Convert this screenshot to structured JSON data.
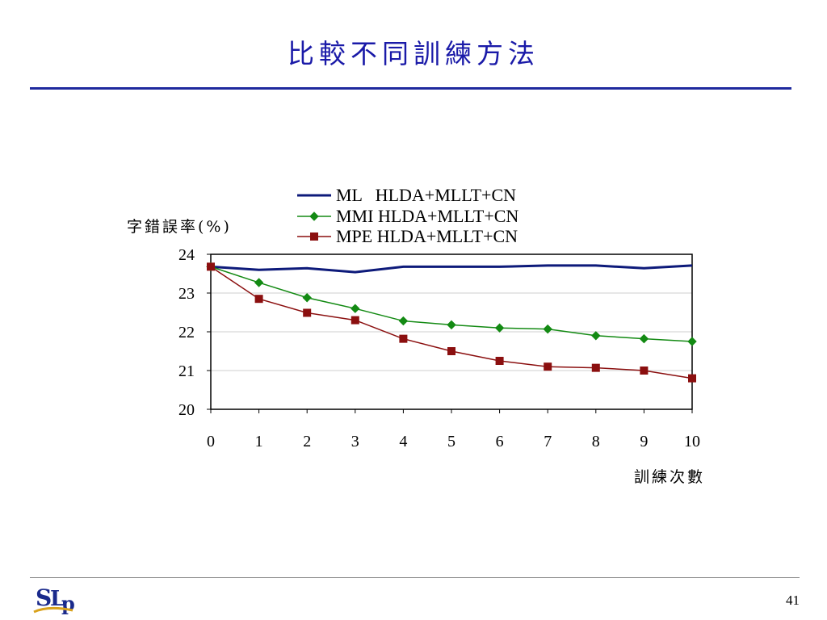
{
  "slide": {
    "title": "比較不同訓練方法",
    "page_number": "41",
    "logo_text": "SLP"
  },
  "colors": {
    "title": "#1a1aa8",
    "rule": "#1f2a9e",
    "ml": "#0d1a7a",
    "mmi": "#138a13",
    "mpe": "#8b0f0f"
  },
  "chart_data": {
    "type": "line",
    "ylabel": "字錯誤率(%)",
    "xlabel": "訓練次數",
    "x": [
      0,
      1,
      2,
      3,
      4,
      5,
      6,
      7,
      8,
      9,
      10
    ],
    "ylim": [
      20,
      24
    ],
    "yticks": [
      "20",
      "21",
      "22",
      "23",
      "24"
    ],
    "xticks": [
      "0",
      "1",
      "2",
      "3",
      "4",
      "5",
      "6",
      "7",
      "8",
      "9",
      "10"
    ],
    "grid": "horizontal",
    "legend_position": "top",
    "series": [
      {
        "name": "ML   HLDA+MLLT+CN",
        "marker": "none",
        "values": [
          23.68,
          23.6,
          23.64,
          23.54,
          23.68,
          23.68,
          23.68,
          23.71,
          23.71,
          23.64,
          23.71
        ]
      },
      {
        "name": "MMI HLDA+MLLT+CN",
        "marker": "diamond",
        "values": [
          23.68,
          23.27,
          22.88,
          22.6,
          22.28,
          22.18,
          22.1,
          22.07,
          21.9,
          21.82,
          21.75
        ]
      },
      {
        "name": "MPE HLDA+MLLT+CN",
        "marker": "square",
        "values": [
          23.68,
          22.85,
          22.49,
          22.3,
          21.82,
          21.5,
          21.25,
          21.1,
          21.07,
          21.0,
          20.8
        ]
      }
    ]
  }
}
